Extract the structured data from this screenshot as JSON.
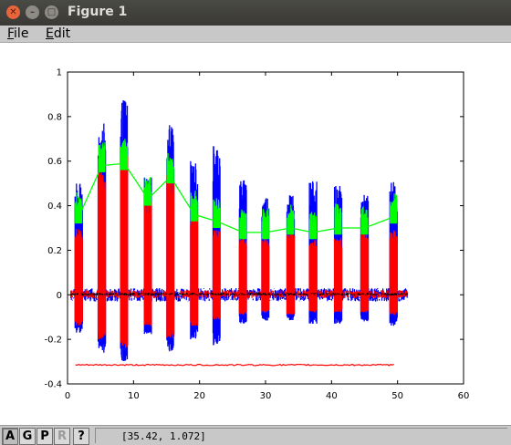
{
  "window": {
    "title": "Figure 1"
  },
  "menubar": {
    "file": {
      "accel": "F",
      "rest": "ile"
    },
    "edit": {
      "accel": "E",
      "rest": "dit"
    }
  },
  "toolbar": {
    "buttons": [
      "A",
      "G",
      "P",
      "R",
      "?"
    ]
  },
  "status": {
    "coordinates": "[35.42, 1.072]"
  },
  "chart_data": {
    "type": "line",
    "title": "",
    "xlabel": "",
    "ylabel": "",
    "xlim": [
      0,
      60
    ],
    "ylim": [
      -0.4,
      1
    ],
    "xticks": [
      "0",
      "10",
      "20",
      "30",
      "40",
      "50",
      "60"
    ],
    "yticks": [
      "-0.4",
      "-0.2",
      "0",
      "0.2",
      "0.4",
      "0.6",
      "0.8",
      "1"
    ],
    "grid": false,
    "bursts": [
      {
        "x": 1.7,
        "blue_max": 0.5,
        "blue_min": -0.17,
        "red_max": 0.3,
        "red_min": -0.14
      },
      {
        "x": 5.2,
        "blue_max": 0.77,
        "blue_min": -0.26,
        "red_max": 0.56,
        "red_min": -0.2
      },
      {
        "x": 8.6,
        "blue_max": 0.88,
        "blue_min": -0.3,
        "red_max": 0.66,
        "red_min": -0.24
      },
      {
        "x": 12.2,
        "blue_max": 0.54,
        "blue_min": -0.18,
        "red_max": 0.42,
        "red_min": -0.14
      },
      {
        "x": 15.6,
        "blue_max": 0.78,
        "blue_min": -0.26,
        "red_max": 0.56,
        "red_min": -0.2
      },
      {
        "x": 19.2,
        "blue_max": 0.6,
        "blue_min": -0.2,
        "red_max": 0.37,
        "red_min": -0.14
      },
      {
        "x": 22.6,
        "blue_max": 0.68,
        "blue_min": -0.23,
        "red_max": 0.29,
        "red_min": -0.11
      },
      {
        "x": 26.6,
        "blue_max": 0.52,
        "blue_min": -0.13,
        "red_max": 0.26,
        "red_min": -0.09
      },
      {
        "x": 30.0,
        "blue_max": 0.45,
        "blue_min": -0.12,
        "red_max": 0.26,
        "red_min": -0.08
      },
      {
        "x": 33.8,
        "blue_max": 0.47,
        "blue_min": -0.12,
        "red_max": 0.28,
        "red_min": -0.09
      },
      {
        "x": 37.2,
        "blue_max": 0.51,
        "blue_min": -0.13,
        "red_max": 0.25,
        "red_min": -0.08
      },
      {
        "x": 41.0,
        "blue_max": 0.49,
        "blue_min": -0.13,
        "red_max": 0.26,
        "red_min": -0.08
      },
      {
        "x": 45.0,
        "blue_max": 0.45,
        "blue_min": -0.12,
        "red_max": 0.28,
        "red_min": -0.08
      },
      {
        "x": 49.4,
        "blue_max": 0.51,
        "blue_min": -0.14,
        "red_max": 0.29,
        "red_min": -0.09
      }
    ],
    "green_line": {
      "x": [
        1.7,
        5.2,
        8.6,
        12.2,
        15.6,
        19.2,
        22.6,
        26.6,
        30.0,
        33.8,
        37.2,
        41.0,
        45.0,
        49.4
      ],
      "y": [
        0.35,
        0.58,
        0.59,
        0.43,
        0.53,
        0.36,
        0.33,
        0.28,
        0.28,
        0.3,
        0.28,
        0.3,
        0.3,
        0.35
      ],
      "color": "#00ff00"
    },
    "baseline_red": {
      "y": -0.315,
      "x_start": 1.2,
      "x_end": 49.5,
      "color": "#ff0000"
    },
    "noise_band": {
      "x_start": 0.5,
      "x_end": 51.5,
      "blue_amp": 0.03,
      "red_amp": 0.018,
      "black_amp": 0.006
    },
    "colors": {
      "blue": "#0000ff",
      "red": "#ff0000",
      "green": "#00ff00",
      "black": "#000000"
    }
  }
}
